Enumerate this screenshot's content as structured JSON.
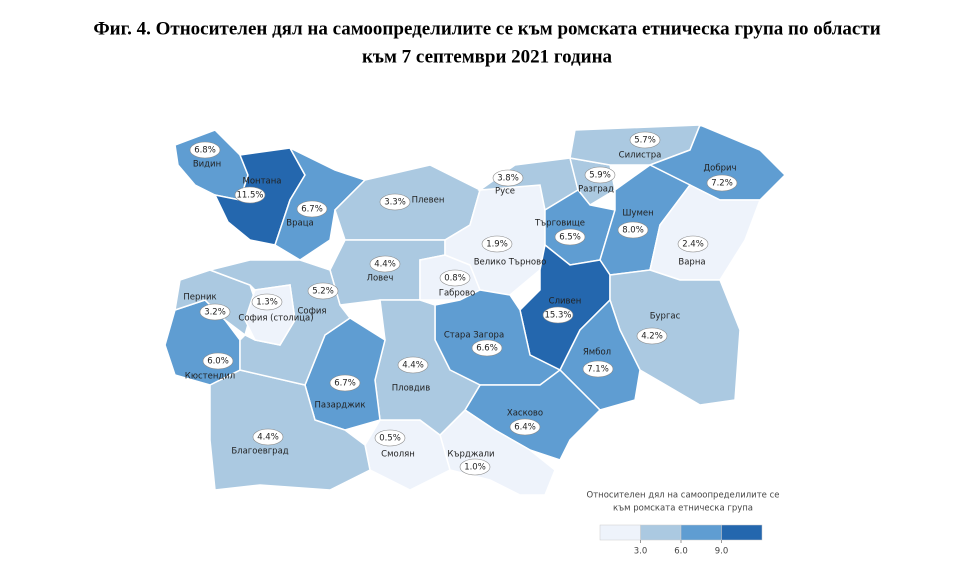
{
  "chart_data": {
    "type": "choropleth",
    "title": [
      "Фиг. 4. Относителен дял на самоопределилите се към ромската етническа група по области",
      "към 7 септември 2021 година"
    ],
    "categories": [
      "Видин",
      "Монтана",
      "Враца",
      "Плевен",
      "Ловеч",
      "Габрово",
      "Велико Търново",
      "Русе",
      "Разград",
      "Силистра",
      "Добрич",
      "Търговище",
      "Шумен",
      "Варна",
      "Сливен",
      "Бургас",
      "Ямбол",
      "Стара Загора",
      "Хасково",
      "Кърджали",
      "Смолян",
      "Пловдив",
      "Пазарджик",
      "Благоевград",
      "Кюстендил",
      "Перник",
      "София",
      "София (столица)"
    ],
    "values": [
      6.8,
      11.5,
      6.7,
      3.3,
      4.4,
      0.8,
      1.9,
      3.8,
      5.9,
      5.7,
      7.2,
      6.5,
      8.0,
      2.4,
      15.3,
      4.2,
      7.1,
      6.6,
      6.4,
      1.0,
      0.5,
      4.4,
      6.7,
      4.4,
      6.0,
      3.2,
      5.2,
      1.3
    ],
    "value_labels": [
      "6.8%",
      "11.5%",
      "6.7%",
      "3.3%",
      "4.4%",
      "0.8%",
      "1.9%",
      "3.8%",
      "5.9%",
      "5.7%",
      "7.2%",
      "6.5%",
      "8.0%",
      "2.4%",
      "15.3%",
      "4.2%",
      "7.1%",
      "6.6%",
      "6.4%",
      "1.0%",
      "0.5%",
      "4.4%",
      "6.7%",
      "4.4%",
      "6.0%",
      "3.2%",
      "5.2%",
      "1.3%"
    ],
    "legend": {
      "title": [
        "Относителен дял на самоопределилите се",
        "към ромската етническа група"
      ],
      "ticks": [
        {
          "value": 3,
          "label": "3.0"
        },
        {
          "value": 6,
          "label": "6.0"
        },
        {
          "value": 9,
          "label": "9.0"
        }
      ],
      "colors": [
        "#eef3fb",
        "#abc9e1",
        "#5f9dd2",
        "#2467ae"
      ]
    }
  }
}
